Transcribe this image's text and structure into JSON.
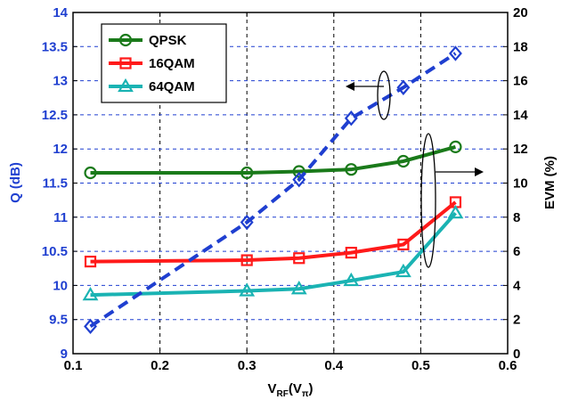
{
  "chart_data": {
    "type": "line",
    "xlabel": "V",
    "xlabel_sub1": "RF",
    "xlabel_mid": "(V",
    "xlabel_sub2": "π",
    "xlabel_end": ")",
    "ylabel_left": "Q (dB)",
    "ylabel_right": "EVM (%)",
    "xlim": [
      0.1,
      0.6
    ],
    "ylim_left": [
      9,
      14
    ],
    "ylim_right": [
      0,
      20
    ],
    "x_ticks": [
      "0.1",
      "0.2",
      "0.3",
      "0.4",
      "0.5",
      "0.6"
    ],
    "y_left_ticks": [
      "9",
      "9.5",
      "10",
      "10.5",
      "11",
      "11.5",
      "12",
      "12.5",
      "13",
      "13.5",
      "14"
    ],
    "y_right_ticks": [
      "0",
      "2",
      "4",
      "6",
      "8",
      "10",
      "12",
      "14",
      "16",
      "18",
      "20"
    ],
    "grid": true,
    "legend_position": "top-left",
    "x": [
      0.12,
      0.3,
      0.36,
      0.42,
      0.48,
      0.54
    ],
    "series": [
      {
        "name": "QPSK",
        "axis": "left",
        "color": "#1a7a1a",
        "marker": "circle",
        "values": [
          11.65,
          11.65,
          11.67,
          11.7,
          11.82,
          12.03
        ]
      },
      {
        "name": "16QAM",
        "axis": "left",
        "color": "#ff1a1a",
        "marker": "square",
        "values": [
          10.35,
          10.37,
          10.4,
          10.48,
          10.6,
          11.22
        ]
      },
      {
        "name": "64QAM",
        "axis": "left",
        "color": "#1ab3b3",
        "marker": "triangle",
        "values": [
          9.86,
          9.92,
          9.95,
          10.07,
          10.2,
          11.06
        ]
      },
      {
        "axis": "right",
        "color": "#1f3fd0",
        "marker": "diamond",
        "dashed": true,
        "values": [
          1.6,
          7.7,
          10.2,
          13.8,
          15.6,
          17.6
        ]
      }
    ],
    "annotations": [
      {
        "type": "ellipse-arrow",
        "target_axis": "left",
        "direction": "left"
      },
      {
        "type": "ellipse-arrow",
        "target_axis": "right",
        "direction": "right"
      }
    ]
  }
}
